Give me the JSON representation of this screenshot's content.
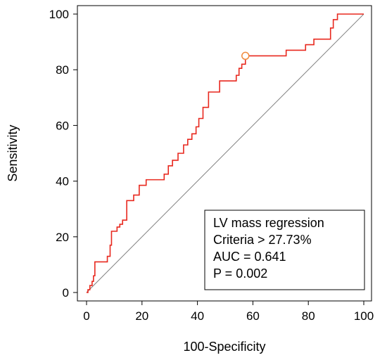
{
  "chart_data": {
    "type": "line",
    "xlabel": "100-Specificity",
    "ylabel": "Sensitivity",
    "xlim": [
      0,
      100
    ],
    "ylim": [
      0,
      100
    ],
    "x_ticks": [
      "0",
      "20",
      "40",
      "60",
      "80",
      "100"
    ],
    "y_ticks": [
      "0",
      "20",
      "40",
      "60",
      "80",
      "100"
    ],
    "grid": false,
    "legend_position": "bottom-right",
    "legend": {
      "title": "LV mass regression",
      "lines": [
        "Criteria > 27.73%",
        "AUC = 0.641",
        "P = 0.002"
      ]
    },
    "series": [
      {
        "role": "roc-curve",
        "color": "#e8281e",
        "points": [
          [
            0,
            0
          ],
          [
            0.5,
            0
          ],
          [
            0.5,
            1
          ],
          [
            1.2,
            1
          ],
          [
            1.2,
            2.5
          ],
          [
            2,
            2.5
          ],
          [
            2,
            4
          ],
          [
            2.5,
            4
          ],
          [
            2.5,
            6
          ],
          [
            3,
            6
          ],
          [
            3,
            11
          ],
          [
            7.5,
            11
          ],
          [
            7.5,
            13
          ],
          [
            8.5,
            13
          ],
          [
            8.5,
            17
          ],
          [
            9,
            17
          ],
          [
            9,
            22
          ],
          [
            11,
            22
          ],
          [
            11,
            23.5
          ],
          [
            12,
            23.5
          ],
          [
            12,
            24.5
          ],
          [
            13,
            24.5
          ],
          [
            13,
            26
          ],
          [
            14.5,
            26
          ],
          [
            14.5,
            33
          ],
          [
            17,
            33
          ],
          [
            17,
            35
          ],
          [
            19,
            35
          ],
          [
            19,
            38.5
          ],
          [
            21.5,
            38.5
          ],
          [
            21.5,
            40.5
          ],
          [
            28,
            40.5
          ],
          [
            28,
            42.5
          ],
          [
            29.5,
            42.5
          ],
          [
            29.5,
            45.5
          ],
          [
            31,
            45.5
          ],
          [
            31,
            47.5
          ],
          [
            33,
            47.5
          ],
          [
            33,
            50
          ],
          [
            35,
            50
          ],
          [
            35,
            53
          ],
          [
            36.5,
            53
          ],
          [
            36.5,
            55
          ],
          [
            38,
            55
          ],
          [
            38,
            57
          ],
          [
            39.5,
            57
          ],
          [
            39.5,
            59.5
          ],
          [
            40.5,
            59.5
          ],
          [
            40.5,
            62.5
          ],
          [
            42,
            62.5
          ],
          [
            42,
            66.5
          ],
          [
            44,
            66.5
          ],
          [
            44,
            72
          ],
          [
            48,
            72
          ],
          [
            48,
            76
          ],
          [
            54,
            76
          ],
          [
            54,
            78
          ],
          [
            55,
            78
          ],
          [
            55,
            80.5
          ],
          [
            56,
            80.5
          ],
          [
            56,
            82
          ],
          [
            57.3,
            82
          ],
          [
            57.3,
            85
          ],
          [
            72,
            85
          ],
          [
            72,
            87
          ],
          [
            79,
            87
          ],
          [
            79,
            89
          ],
          [
            82,
            89
          ],
          [
            82,
            91
          ],
          [
            88,
            91
          ],
          [
            88,
            95
          ],
          [
            89,
            95
          ],
          [
            89,
            98
          ],
          [
            90.5,
            98
          ],
          [
            90.5,
            100
          ],
          [
            100,
            100
          ]
        ]
      },
      {
        "role": "reference-diagonal",
        "color": "#808080",
        "points": [
          [
            0,
            0
          ],
          [
            100,
            100
          ]
        ]
      }
    ],
    "criterion_point": {
      "x": 57.3,
      "y": 85,
      "color": "#f08a3c"
    }
  }
}
